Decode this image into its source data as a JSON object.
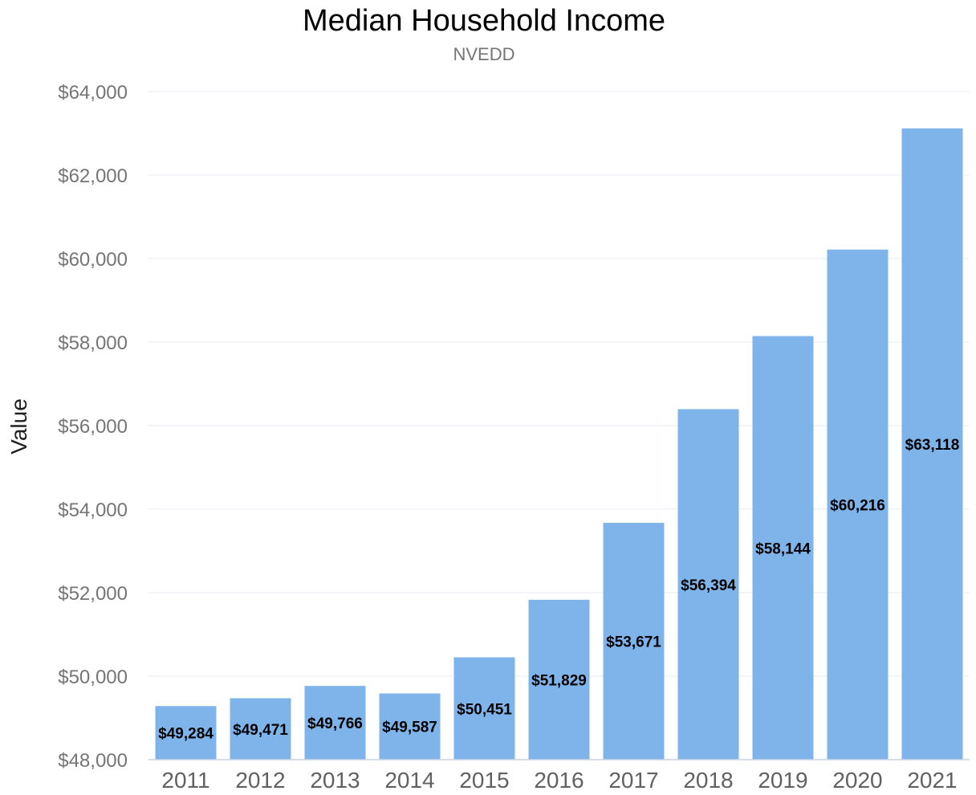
{
  "chart_data": {
    "type": "bar",
    "title": "Median Household Income",
    "subtitle": "NVEDD",
    "xlabel": "",
    "ylabel": "Value",
    "categories": [
      "2011",
      "2012",
      "2013",
      "2014",
      "2015",
      "2016",
      "2017",
      "2018",
      "2019",
      "2020",
      "2021"
    ],
    "values": [
      49284,
      49471,
      49766,
      49587,
      50451,
      51829,
      53671,
      56394,
      58144,
      60216,
      63118
    ],
    "data_labels": [
      "$49,284",
      "$49,471",
      "$49,766",
      "$49,587",
      "$50,451",
      "$51,829",
      "$53,671",
      "$56,394",
      "$58,144",
      "$60,216",
      "$63,118"
    ],
    "ylim": [
      48000,
      64000
    ],
    "yticks": [
      48000,
      50000,
      52000,
      54000,
      56000,
      58000,
      60000,
      62000,
      64000
    ],
    "ytick_labels": [
      "$48,000",
      "$50,000",
      "$52,000",
      "$54,000",
      "$56,000",
      "$58,000",
      "$60,000",
      "$62,000",
      "$64,000"
    ],
    "grid": true,
    "legend": "none",
    "bar_color": "#7eb4ea"
  }
}
